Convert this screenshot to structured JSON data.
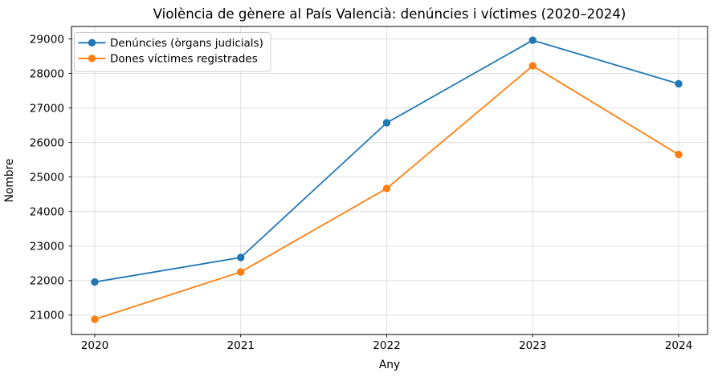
{
  "chart_data": {
    "type": "line",
    "title": "Violència de gènere al País Valencià: denúncies i víctimes (2020–2024)",
    "xlabel": "Any",
    "ylabel": "Nombre",
    "x": [
      2020,
      2021,
      2022,
      2023,
      2024
    ],
    "series": [
      {
        "name": "Denúncies (òrgans judicials)",
        "color": "#1f77b4",
        "values": [
          21960,
          22670,
          26570,
          28960,
          27700
        ]
      },
      {
        "name": "Dones víctimes registrades",
        "color": "#ff7f0e",
        "values": [
          20880,
          22250,
          24670,
          28220,
          25650
        ]
      }
    ],
    "yticks": [
      21000,
      22000,
      23000,
      24000,
      25000,
      26000,
      27000,
      28000,
      29000
    ],
    "ylim": [
      20440,
      29360
    ],
    "grid": true,
    "legend_position": "upper left",
    "marker": "circle",
    "background_color": "#ffffff"
  }
}
